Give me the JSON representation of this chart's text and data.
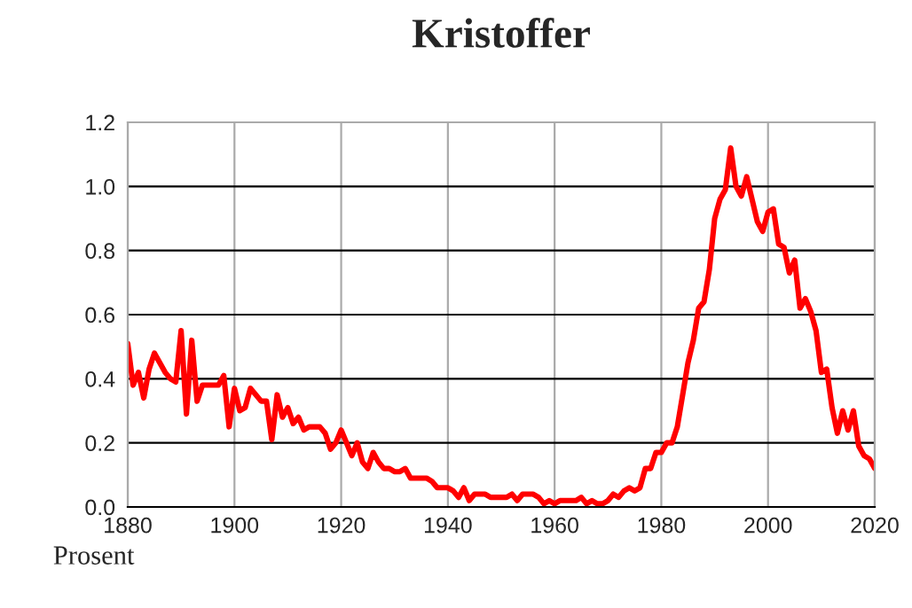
{
  "chart_data": {
    "type": "line",
    "title": "Kristoffer",
    "ylabel": "Prosent",
    "x": [
      1880,
      1881,
      1882,
      1883,
      1884,
      1885,
      1886,
      1887,
      1888,
      1889,
      1890,
      1891,
      1892,
      1893,
      1894,
      1895,
      1896,
      1897,
      1898,
      1899,
      1900,
      1901,
      1902,
      1903,
      1904,
      1905,
      1906,
      1907,
      1908,
      1909,
      1910,
      1911,
      1912,
      1913,
      1914,
      1915,
      1916,
      1917,
      1918,
      1919,
      1920,
      1921,
      1922,
      1923,
      1924,
      1925,
      1926,
      1927,
      1928,
      1929,
      1930,
      1931,
      1932,
      1933,
      1934,
      1935,
      1936,
      1937,
      1938,
      1939,
      1940,
      1941,
      1942,
      1943,
      1944,
      1945,
      1946,
      1947,
      1948,
      1949,
      1950,
      1951,
      1952,
      1953,
      1954,
      1955,
      1956,
      1957,
      1958,
      1959,
      1960,
      1961,
      1962,
      1963,
      1964,
      1965,
      1966,
      1967,
      1968,
      1969,
      1970,
      1971,
      1972,
      1973,
      1974,
      1975,
      1976,
      1977,
      1978,
      1979,
      1980,
      1981,
      1982,
      1983,
      1984,
      1985,
      1986,
      1987,
      1988,
      1989,
      1990,
      1991,
      1992,
      1993,
      1994,
      1995,
      1996,
      1997,
      1998,
      1999,
      2000,
      2001,
      2002,
      2003,
      2004,
      2005,
      2006,
      2007,
      2008,
      2009,
      2010,
      2011,
      2012,
      2013,
      2014,
      2015,
      2016,
      2017,
      2018,
      2019,
      2020
    ],
    "series": [
      {
        "color": "#ff0000",
        "values": [
          0.51,
          0.38,
          0.42,
          0.34,
          0.43,
          0.48,
          0.45,
          0.42,
          0.4,
          0.39,
          0.55,
          0.29,
          0.52,
          0.33,
          0.38,
          0.38,
          0.38,
          0.38,
          0.41,
          0.25,
          0.37,
          0.3,
          0.31,
          0.37,
          0.35,
          0.33,
          0.33,
          0.21,
          0.35,
          0.28,
          0.31,
          0.26,
          0.28,
          0.24,
          0.25,
          0.25,
          0.25,
          0.23,
          0.18,
          0.2,
          0.24,
          0.2,
          0.16,
          0.2,
          0.14,
          0.12,
          0.17,
          0.14,
          0.12,
          0.12,
          0.11,
          0.11,
          0.12,
          0.09,
          0.09,
          0.09,
          0.09,
          0.08,
          0.06,
          0.06,
          0.06,
          0.05,
          0.03,
          0.06,
          0.02,
          0.04,
          0.04,
          0.04,
          0.03,
          0.03,
          0.03,
          0.03,
          0.04,
          0.02,
          0.04,
          0.04,
          0.04,
          0.03,
          0.01,
          0.02,
          0.01,
          0.02,
          0.02,
          0.02,
          0.02,
          0.03,
          0.01,
          0.02,
          0.01,
          0.01,
          0.02,
          0.04,
          0.03,
          0.05,
          0.06,
          0.05,
          0.06,
          0.12,
          0.12,
          0.17,
          0.17,
          0.2,
          0.2,
          0.25,
          0.35,
          0.45,
          0.52,
          0.62,
          0.64,
          0.74,
          0.9,
          0.96,
          0.99,
          1.12,
          1.0,
          0.97,
          1.03,
          0.96,
          0.89,
          0.86,
          0.92,
          0.93,
          0.82,
          0.81,
          0.73,
          0.77,
          0.62,
          0.65,
          0.61,
          0.55,
          0.42,
          0.43,
          0.31,
          0.23,
          0.3,
          0.24,
          0.3,
          0.19,
          0.16,
          0.15,
          0.12
        ]
      }
    ],
    "xlim": [
      1880,
      2020
    ],
    "xticks": [
      1880,
      1900,
      1920,
      1940,
      1960,
      1980,
      2000,
      2020
    ],
    "ylim": [
      0,
      1.2
    ],
    "yticks": [
      {
        "value": 0,
        "label": "0.0"
      },
      {
        "value": 0.2,
        "label": "0.2"
      },
      {
        "value": 0.4,
        "label": "0.4"
      },
      {
        "value": 0.6,
        "label": "0.6"
      },
      {
        "value": 0.8,
        "label": "0.8"
      },
      {
        "value": 1.0,
        "label": "1.0"
      },
      {
        "value": 1.2,
        "label": "1.2"
      }
    ],
    "grid": true,
    "line_style": "solid"
  }
}
